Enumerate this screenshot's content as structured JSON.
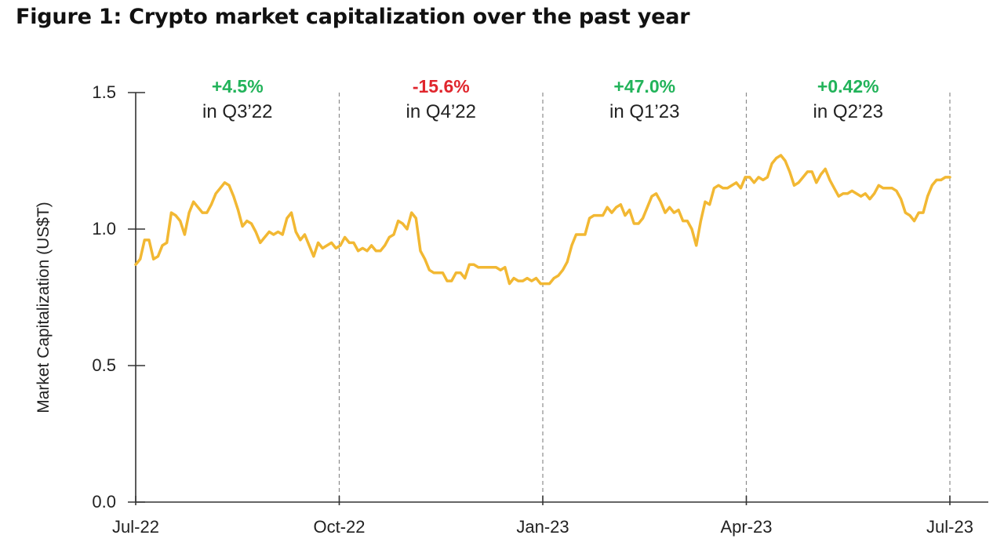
{
  "title": "Figure 1: Crypto market capitalization over the past year",
  "colors": {
    "line": "#F2B833",
    "positive": "#22B35A",
    "negative": "#E0262D",
    "axis": "#333333",
    "divider": "#8C8C8C"
  },
  "chart_data": {
    "type": "line",
    "title": "Figure 1: Crypto market capitalization over the past year",
    "xlabel": "",
    "ylabel": "Market Capitalization (US$T)",
    "ylim": [
      0,
      1.5
    ],
    "yticks": [
      "0.0",
      "0.5",
      "1.0",
      "1.5"
    ],
    "xticks": [
      "Jul-22",
      "Oct-22",
      "Jan-23",
      "Apr-23",
      "Jul-23"
    ],
    "grid": false,
    "quarter_dividers": [
      "Oct-22",
      "Jan-23",
      "Apr-23",
      "Jul-23"
    ],
    "annotations": [
      {
        "change": "+4.5%",
        "quarter": "in Q3’22",
        "sign": "positive"
      },
      {
        "change": "-15.6%",
        "quarter": "in Q4’22",
        "sign": "negative"
      },
      {
        "change": "+47.0%",
        "quarter": "in Q1’23",
        "sign": "positive"
      },
      {
        "change": "+0.42%",
        "quarter": "in Q2’23",
        "sign": "positive"
      }
    ],
    "series": [
      {
        "x_start": "Jul-22",
        "x_end": "Jul-23",
        "values": [
          0.87,
          0.89,
          0.96,
          0.96,
          0.89,
          0.9,
          0.94,
          0.95,
          1.06,
          1.05,
          1.03,
          0.98,
          1.06,
          1.1,
          1.08,
          1.06,
          1.06,
          1.09,
          1.13,
          1.15,
          1.17,
          1.16,
          1.12,
          1.07,
          1.01,
          1.03,
          1.02,
          0.99,
          0.95,
          0.97,
          0.99,
          0.98,
          0.99,
          0.98,
          1.04,
          1.06,
          0.99,
          0.96,
          0.98,
          0.94,
          0.9,
          0.95,
          0.93,
          0.94,
          0.95,
          0.93,
          0.94,
          0.97,
          0.95,
          0.95,
          0.92,
          0.93,
          0.92,
          0.94,
          0.92,
          0.92,
          0.94,
          0.97,
          0.98,
          1.03,
          1.02,
          1.0,
          1.06,
          1.04,
          0.92,
          0.89,
          0.85,
          0.84,
          0.84,
          0.84,
          0.81,
          0.81,
          0.84,
          0.84,
          0.82,
          0.87,
          0.87,
          0.86,
          0.86,
          0.86,
          0.86,
          0.86,
          0.85,
          0.86,
          0.8,
          0.82,
          0.81,
          0.81,
          0.82,
          0.81,
          0.82,
          0.8,
          0.8,
          0.8,
          0.82,
          0.83,
          0.85,
          0.88,
          0.94,
          0.98,
          0.98,
          0.98,
          1.04,
          1.05,
          1.05,
          1.05,
          1.08,
          1.06,
          1.08,
          1.09,
          1.05,
          1.07,
          1.02,
          1.02,
          1.04,
          1.08,
          1.12,
          1.13,
          1.1,
          1.06,
          1.08,
          1.06,
          1.07,
          1.03,
          1.03,
          1.0,
          0.94,
          1.03,
          1.1,
          1.09,
          1.15,
          1.16,
          1.15,
          1.15,
          1.16,
          1.17,
          1.15,
          1.19,
          1.19,
          1.17,
          1.19,
          1.18,
          1.19,
          1.24,
          1.26,
          1.27,
          1.25,
          1.21,
          1.16,
          1.17,
          1.19,
          1.21,
          1.21,
          1.17,
          1.2,
          1.22,
          1.18,
          1.15,
          1.12,
          1.13,
          1.13,
          1.14,
          1.13,
          1.12,
          1.13,
          1.11,
          1.13,
          1.16,
          1.15,
          1.15,
          1.15,
          1.14,
          1.11,
          1.06,
          1.05,
          1.03,
          1.06,
          1.06,
          1.12,
          1.16,
          1.18,
          1.18,
          1.19,
          1.19
        ]
      }
    ]
  }
}
